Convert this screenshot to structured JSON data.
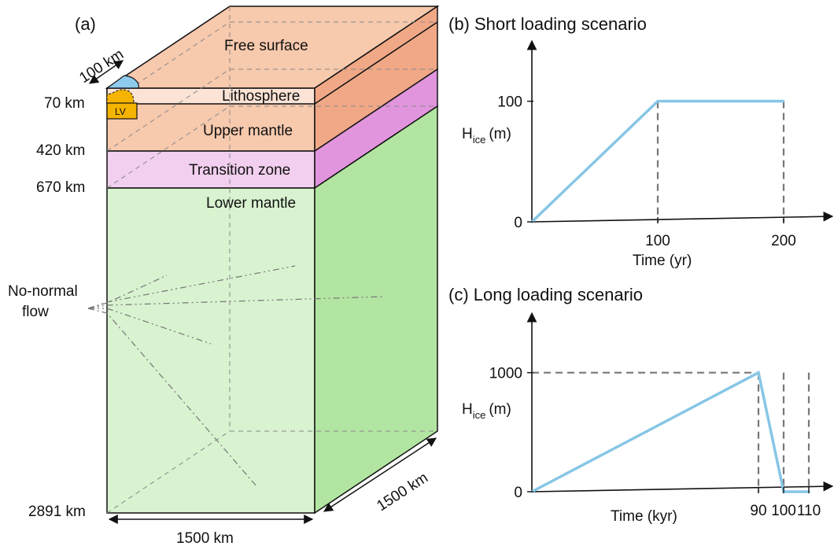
{
  "panel_a": {
    "label": "(a)",
    "layers": {
      "free_surface": "Free surface",
      "lithosphere": "Lithosphere",
      "upper_mantle": "Upper mantle",
      "transition_zone": "Transition zone",
      "lower_mantle": "Lower mantle"
    },
    "depths": {
      "d70": "70 km",
      "d420": "420 km",
      "d670": "670 km",
      "d2891": "2891 km"
    },
    "width_bottom": "1500 km",
    "width_side": "1500 km",
    "ice_radius": "100 km",
    "lv_label": "LV",
    "boundary_label_line1": "No-normal",
    "boundary_label_line2": "flow",
    "colors": {
      "crust_front": "#f7c9ad",
      "crust_side": "#f0a887",
      "litho_front": "#fbe3d6",
      "transition_front": "#f2cfee",
      "transition_side": "#e095dc",
      "lower_front": "#d9f2d0",
      "lower_side": "#b3e5a2",
      "ice": "#8ecbec",
      "lv": "#f4b400"
    }
  },
  "panel_b": {
    "title": "(b) Short loading scenario",
    "y_label_main": "H",
    "y_label_sub": "ice",
    "y_label_unit": "(m)",
    "x_label": "Time (yr)",
    "chart_data": {
      "type": "line",
      "title": "(b) Short loading scenario",
      "xlabel": "Time (yr)",
      "ylabel": "Hice (m)",
      "x_ticks": [
        "100",
        "200"
      ],
      "y_ticks": [
        "0",
        "100"
      ],
      "xlim": [
        0,
        240
      ],
      "ylim": [
        0,
        150
      ],
      "x": [
        0,
        100,
        200
      ],
      "y": [
        0,
        100,
        100
      ],
      "dashed_verticals": [
        100,
        200
      ],
      "line_color": "#87c6e6"
    }
  },
  "panel_c": {
    "title": "(c) Long loading scenario",
    "y_label_main": "H",
    "y_label_sub": "ice",
    "y_label_unit": "(m)",
    "x_label": "Time (kyr)",
    "chart_data": {
      "type": "line",
      "title": "(c) Long loading scenario",
      "xlabel": "Time (kyr)",
      "ylabel": "Hice (m)",
      "x_ticks": [
        "90",
        "100",
        "110"
      ],
      "y_ticks": [
        "0",
        "1000"
      ],
      "xlim": [
        0,
        120
      ],
      "ylim": [
        0,
        1500
      ],
      "x": [
        0,
        90,
        100,
        110
      ],
      "y": [
        0,
        1000,
        0,
        0
      ],
      "dashed_verticals": [
        90,
        100,
        110
      ],
      "dashed_horizontal": 1000,
      "line_color": "#87c6e6"
    }
  }
}
